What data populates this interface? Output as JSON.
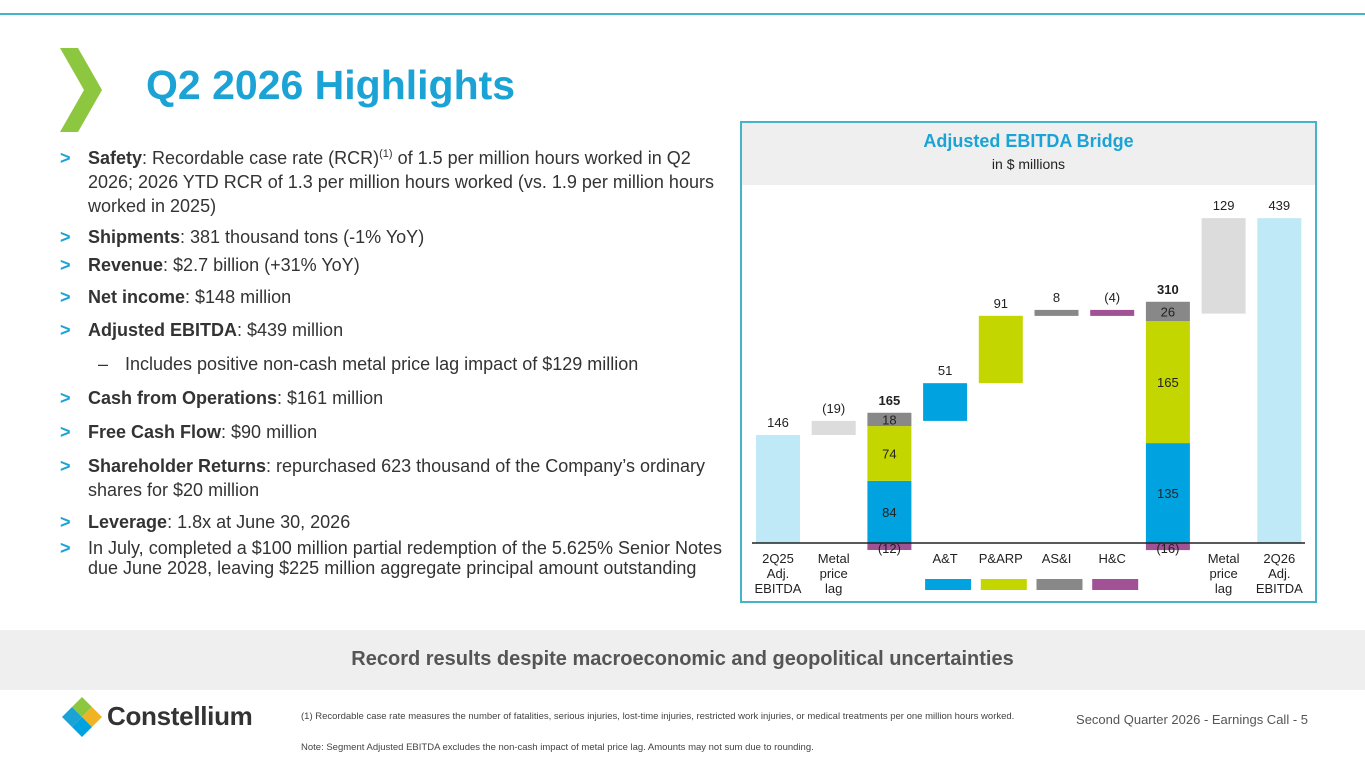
{
  "title": "Q2 2026 Highlights",
  "bullets": [
    {
      "key": "Safety",
      "pre": ": Recordable case rate (RCR)",
      "sup": "(1)",
      "post": " of 1.5 per million hours worked in Q2 2026; 2026 YTD RCR of 1.3 per million hours worked (vs. 1.9 per million hours worked in 2025)"
    },
    {
      "key": "Shipments",
      "text": ": 381 thousand tons (-1% YoY)"
    },
    {
      "key": "Revenue",
      "text": ": $2.7 billion (+31% YoY)"
    },
    {
      "key": "Net income",
      "text": ": $148 million"
    },
    {
      "key": "Adjusted EBITDA",
      "text": ": $439 million"
    },
    {
      "sub": "Includes positive non-cash metal price lag impact of $129 million"
    },
    {
      "key": "Cash from Operations",
      "text": ": $161 million"
    },
    {
      "key": "Free Cash Flow",
      "text": ": $90 million"
    },
    {
      "key": "Shareholder Returns",
      "text": ": repurchased 623 thousand of the Company’s ordinary shares for $20 million"
    },
    {
      "key": "Leverage",
      "text": ": 1.8x at June 30, 2026"
    },
    {
      "key": "",
      "text": "In July, completed a $100 million partial redemption of the 5.625% Senior Notes due June 2028, leaving $225 million aggregate principal amount outstanding"
    }
  ],
  "chart_data": {
    "type": "bar",
    "title": "Adjusted EBITDA Bridge",
    "subtitle": "in $ millions",
    "ylim": [
      0,
      460
    ],
    "categories": [
      "2Q25 Adj. EBITDA",
      "Metal price lag",
      "",
      "A&T",
      "P&ARP",
      "AS&I",
      "H&C",
      "",
      "Metal price lag",
      "2Q26 Adj. EBITDA"
    ],
    "bars": [
      {
        "label": "146",
        "base": 0,
        "top": 146,
        "color": "#bfe9f7"
      },
      {
        "label": "(19)",
        "base": 146,
        "top": 165,
        "color": "#dcdcdc"
      },
      {
        "label": "165",
        "bold": true,
        "stack": [
          {
            "name": "A&T",
            "value": 84,
            "label": "84",
            "color": "#00a3e0"
          },
          {
            "name": "P&ARP",
            "value": 74,
            "label": "74",
            "color": "#c4d600"
          },
          {
            "name": "AS&I",
            "value": 18,
            "label": "18",
            "color": "#888888"
          },
          {
            "name": "H&C",
            "value": -12,
            "label": "(12)",
            "color": "#a05295"
          }
        ]
      },
      {
        "label": "51",
        "base": 165,
        "top": 216,
        "color": "#00a3e0"
      },
      {
        "label": "91",
        "base": 216,
        "top": 307,
        "color": "#c4d600"
      },
      {
        "label": "8",
        "base": 307,
        "top": 315,
        "color": "#888888"
      },
      {
        "label": "(4)",
        "base": 311,
        "top": 315,
        "color": "#a05295"
      },
      {
        "label": "310",
        "bold": true,
        "stack": [
          {
            "name": "A&T",
            "value": 135,
            "label": "135",
            "color": "#00a3e0"
          },
          {
            "name": "P&ARP",
            "value": 165,
            "label": "165",
            "color": "#c4d600"
          },
          {
            "name": "AS&I",
            "value": 26,
            "label": "26",
            "color": "#888888"
          },
          {
            "name": "H&C",
            "value": -16,
            "label": "(16)",
            "color": "#a05295"
          }
        ]
      },
      {
        "label": "129",
        "base": 310,
        "top": 439,
        "color": "#dcdcdc"
      },
      {
        "label": "439",
        "base": 0,
        "top": 439,
        "color": "#bfe9f7"
      }
    ],
    "xlabels": [
      [
        "2Q25",
        "Adj.",
        "EBITDA"
      ],
      [
        "Metal",
        "price",
        "lag"
      ],
      [],
      [
        "A&T"
      ],
      [
        "P&ARP"
      ],
      [
        "AS&I"
      ],
      [
        "H&C"
      ],
      [],
      [
        "Metal",
        "price",
        "lag"
      ],
      [
        "2Q26",
        "Adj.",
        "EBITDA"
      ]
    ],
    "legend": [
      {
        "name": "A&T",
        "color": "#00a3e0"
      },
      {
        "name": "P&ARP",
        "color": "#c4d600"
      },
      {
        "name": "AS&I",
        "color": "#888888"
      },
      {
        "name": "H&C",
        "color": "#a05295"
      }
    ]
  },
  "banner": "Record results despite macroeconomic and geopolitical uncertainties",
  "logo_text": "Constellium",
  "footnote1": "(1) Recordable case rate measures the number of fatalities, serious injuries, lost-time injuries, restricted work injuries, or medical treatments per one million hours worked.",
  "footnote2": "Note: Segment Adjusted EBITDA excludes the non-cash impact of metal price lag. Amounts may not sum due to rounding.",
  "page_info": "Second Quarter 2026 - Earnings Call - 5",
  "colors": {
    "accent": "#1ba3d6",
    "chevron": "#8dc63f"
  }
}
